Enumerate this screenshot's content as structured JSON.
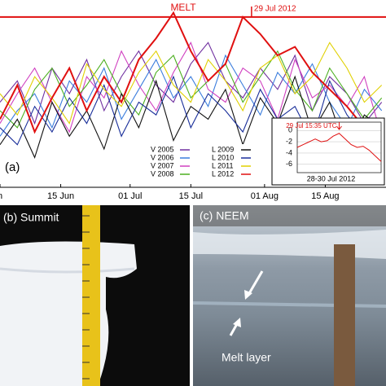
{
  "chart_data": [
    {
      "type": "line",
      "panel_label": "(a)",
      "melt_label": "MELT",
      "melt_threshold": 0,
      "event_label": "29 Jul 2012",
      "event_x": 58,
      "x": [
        0,
        4,
        8,
        12,
        16,
        20,
        24,
        28,
        32,
        36,
        40,
        44,
        48,
        52,
        56,
        60,
        64,
        68,
        72,
        76,
        80,
        84,
        88
      ],
      "xlim": [
        0,
        89
      ],
      "ylim": [
        -40,
        4
      ],
      "xticks": [
        {
          "value": 0,
          "label": "n"
        },
        {
          "value": 14,
          "label": "15 Jun"
        },
        {
          "value": 30,
          "label": "01 Jul"
        },
        {
          "value": 44,
          "label": "15 Jul"
        },
        {
          "value": 61,
          "label": "01 Aug"
        },
        {
          "value": 75,
          "label": "15 Aug"
        }
      ],
      "series": [
        {
          "name": "V 2005",
          "color": "#7030a0",
          "values": [
            -20,
            -15,
            -25,
            -12,
            -18,
            -10,
            -22,
            -14,
            -8,
            -16,
            -20,
            -11,
            -6,
            -15,
            -19,
            -12,
            -17,
            -9,
            -22,
            -14,
            -18,
            -25,
            -20
          ]
        },
        {
          "name": "V 2006",
          "color": "#3b7ddd",
          "values": [
            -28,
            -22,
            -18,
            -26,
            -15,
            -20,
            -12,
            -24,
            -17,
            -10,
            -19,
            -14,
            -21,
            -9,
            -16,
            -23,
            -13,
            -18,
            -11,
            -20,
            -26,
            -17,
            -22
          ]
        },
        {
          "name": "V 2007",
          "color": "#d040c0",
          "values": [
            -25,
            -18,
            -12,
            -20,
            -27,
            -14,
            -19,
            -8,
            -16,
            -22,
            -13,
            -6,
            -17,
            -20,
            -12,
            -15,
            -24,
            -10,
            -19,
            -16,
            -21,
            -14,
            -28
          ]
        },
        {
          "name": "V 2008",
          "color": "#4caf20",
          "values": [
            -22,
            -26,
            -17,
            -12,
            -21,
            -16,
            -10,
            -18,
            -23,
            -13,
            -9,
            -19,
            -15,
            -11,
            -20,
            -14,
            -8,
            -17,
            -22,
            -12,
            -18,
            -24,
            -19
          ]
        },
        {
          "name": "L 2009",
          "color": "#111111",
          "values": [
            -30,
            -24,
            -33,
            -20,
            -28,
            -22,
            -31,
            -18,
            -26,
            -15,
            -29,
            -21,
            -24,
            -17,
            -30,
            -19,
            -25,
            -14,
            -27,
            -20,
            -32,
            -23,
            -26
          ]
        },
        {
          "name": "L 2010",
          "color": "#1a2f9a",
          "values": [
            -26,
            -30,
            -21,
            -27,
            -19,
            -25,
            -16,
            -28,
            -20,
            -23,
            -14,
            -26,
            -18,
            -22,
            -27,
            -17,
            -24,
            -21,
            -29,
            -15,
            -23,
            -28,
            -24
          ]
        },
        {
          "name": "L 2011",
          "color": "#e0d000",
          "values": [
            -18,
            -23,
            -14,
            -19,
            -25,
            -11,
            -17,
            -21,
            -13,
            -8,
            -16,
            -20,
            -10,
            -15,
            -22,
            -12,
            -9,
            -18,
            -14,
            -6,
            -12,
            -20,
            -16
          ]
        },
        {
          "name": "L 2012",
          "color": "#e01010",
          "values": [
            -24,
            -16,
            -27,
            -19,
            -12,
            -22,
            -14,
            -20,
            -10,
            -5,
            1,
            -8,
            -15,
            -11,
            0,
            -4,
            -9,
            -7,
            -13,
            -17,
            -21,
            -26,
            -30
          ]
        }
      ]
    },
    {
      "type": "line",
      "title": "29 Jul 15:35 UTC",
      "x_label": "28-30 Jul 2012",
      "event_index": 7,
      "ylim": [
        -7.5,
        1.5
      ],
      "yticks": [
        0,
        -2,
        -4,
        -6
      ],
      "color": "#e01010",
      "values": [
        -3,
        -2.5,
        -2,
        -1.5,
        -2,
        -1.8,
        -1,
        -0.5,
        -1.5,
        -2.5,
        -3,
        -2.8,
        -3.5,
        -4.5,
        -5.5
      ]
    }
  ],
  "panels": {
    "b": {
      "label": "(b) Summit"
    },
    "c": {
      "label": "(c) NEEM",
      "annotation": "Melt layer"
    }
  }
}
